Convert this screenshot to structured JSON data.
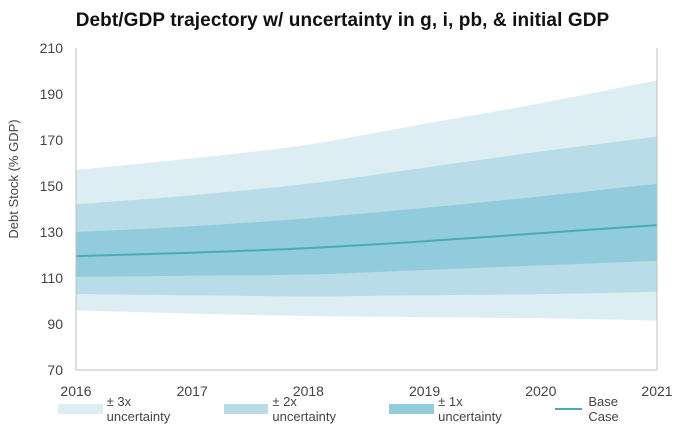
{
  "chart_data": {
    "type": "area",
    "title": "Debt/GDP trajectory w/ uncertainty in g, i, pb, & initial GDP",
    "xlabel": "",
    "ylabel": "Debt Stock (% GDP)",
    "x": [
      "2016",
      "2017",
      "2018",
      "2019",
      "2020",
      "2021"
    ],
    "ylim": [
      70,
      210
    ],
    "yticks": [
      "70",
      "90",
      "110",
      "130",
      "150",
      "170",
      "190",
      "210"
    ],
    "grid": false,
    "legend_position": "bottom",
    "bands": [
      {
        "name": "± 3x uncertainty",
        "color": "#dcedf3",
        "upper": [
          157,
          162,
          168,
          177,
          186,
          196
        ],
        "lower": [
          96,
          94.5,
          93.5,
          93,
          92.5,
          91.5
        ]
      },
      {
        "name": "± 2x uncertainty",
        "color": "#b8dde8",
        "upper": [
          142,
          146,
          151,
          158,
          165,
          171.5
        ],
        "lower": [
          103,
          102.5,
          102,
          102.5,
          103,
          104
        ]
      },
      {
        "name": "± 1x uncertainty",
        "color": "#92cbdc",
        "upper": [
          130,
          132.5,
          136,
          140.5,
          145.5,
          151
        ],
        "lower": [
          110.5,
          111,
          111.5,
          113.5,
          115.5,
          117.5
        ]
      }
    ],
    "series": [
      {
        "name": "Base Case",
        "color": "#4aaab8",
        "values": [
          119.5,
          121,
          123,
          126,
          129.5,
          133
        ]
      }
    ]
  }
}
